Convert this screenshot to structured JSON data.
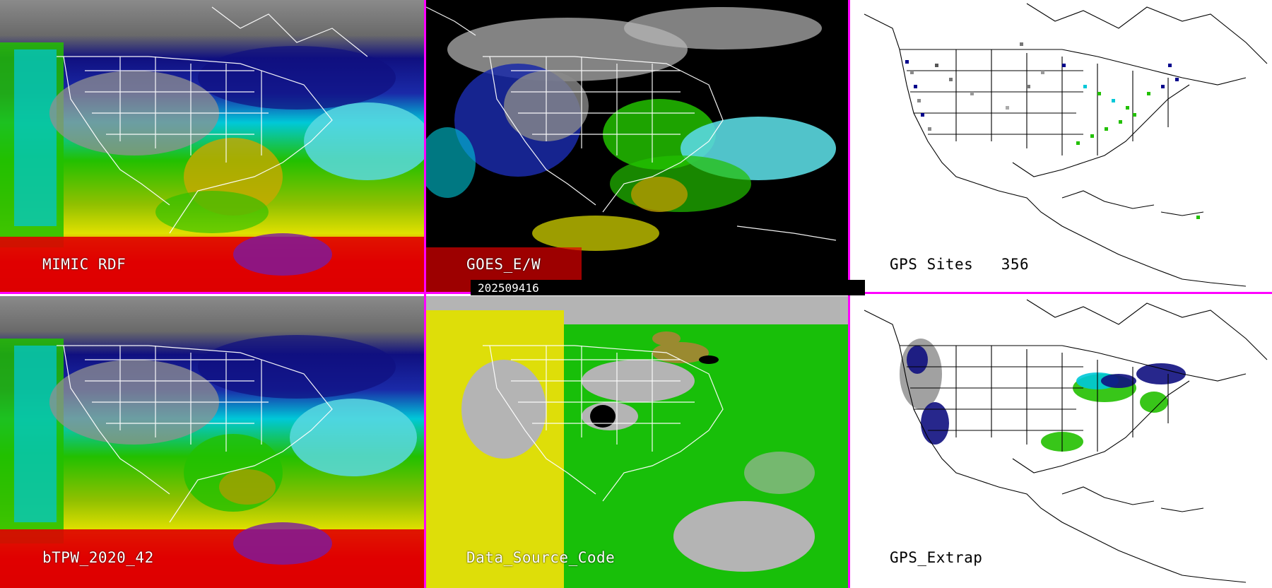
{
  "panels": {
    "mimic_rdf": {
      "label": "MIMIC RDF"
    },
    "goes": {
      "label": "GOES_E/W"
    },
    "gps_sites": {
      "label": "GPS Sites",
      "count": "356"
    },
    "btpw": {
      "label": "bTPW_2020_42"
    },
    "data_source": {
      "label": "Data_Source_Code"
    },
    "gps_extrap": {
      "label": "GPS_Extrap"
    }
  },
  "date_bar": {
    "text": "202509416"
  },
  "colors": {
    "divider": "#ff00ff",
    "tpw_dry": "#0c0c8c",
    "tpw_low": "#00c8d8",
    "tpw_mid": "#22c000",
    "tpw_high": "#e0e000",
    "tpw_very_high": "#e00000",
    "source_yellow": "#e0e000",
    "source_green": "#10c000",
    "source_gray": "#b4b4b4"
  }
}
